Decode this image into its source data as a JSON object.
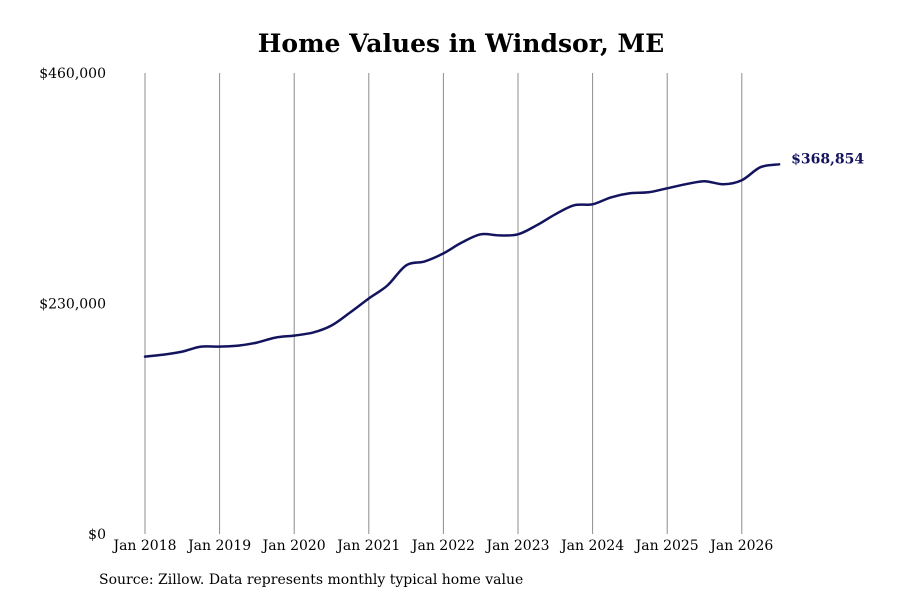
{
  "chart_data": {
    "type": "line",
    "title": "Home Values in Windsor, ME",
    "source": "Source: Zillow. Data represents monthly typical home value",
    "ylim": [
      0,
      460000
    ],
    "y_ticks": [
      {
        "value": 0,
        "label": "$0"
      },
      {
        "value": 230000,
        "label": "$230,000"
      },
      {
        "value": 460000,
        "label": "$460,000"
      }
    ],
    "x_ticks": [
      {
        "value": "2018-01",
        "label": "Jan 2018"
      },
      {
        "value": "2019-01",
        "label": "Jan 2019"
      },
      {
        "value": "2020-01",
        "label": "Jan 2020"
      },
      {
        "value": "2021-01",
        "label": "Jan 2021"
      },
      {
        "value": "2022-01",
        "label": "Jan 2022"
      },
      {
        "value": "2023-01",
        "label": "Jan 2023"
      },
      {
        "value": "2024-01",
        "label": "Jan 2024"
      },
      {
        "value": "2025-01",
        "label": "Jan 2025"
      },
      {
        "value": "2026-01",
        "label": "Jan 2026"
      }
    ],
    "grid": "vertical",
    "line_color": "#13135e",
    "end_label": "$368,854",
    "series": [
      {
        "x": [
          "2018-01",
          "2018-04",
          "2018-07",
          "2018-10",
          "2019-01",
          "2019-04",
          "2019-07",
          "2019-10",
          "2020-01",
          "2020-04",
          "2020-07",
          "2020-10",
          "2021-01",
          "2021-04",
          "2021-07",
          "2021-10",
          "2022-01",
          "2022-04",
          "2022-07",
          "2022-10",
          "2023-01",
          "2023-04",
          "2023-07",
          "2023-10",
          "2024-01",
          "2024-04",
          "2024-07",
          "2024-10",
          "2025-01",
          "2025-04",
          "2025-07",
          "2025-10",
          "2026-01",
          "2026-04",
          "2026-07"
        ],
        "y": [
          177000,
          179000,
          182000,
          187000,
          187000,
          188000,
          191000,
          196000,
          198000,
          201000,
          208000,
          221000,
          235000,
          248000,
          268000,
          272000,
          280000,
          291000,
          299000,
          298000,
          299000,
          308000,
          319000,
          328000,
          329000,
          336000,
          340000,
          341000,
          345000,
          349000,
          352000,
          349000,
          353000,
          366000,
          368854
        ]
      }
    ]
  }
}
